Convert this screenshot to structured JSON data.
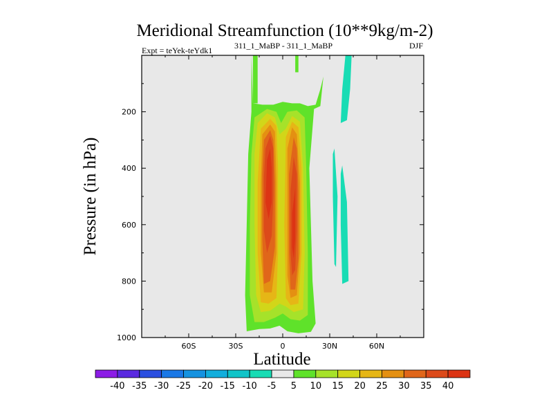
{
  "chart_data": {
    "type": "contour",
    "title": "Meridional Streamfunction (10**9kg/m-2)",
    "left_label": "Expt = teYek-teYdk1",
    "center_label": "311_1_MaBP - 311_1_MaBP",
    "right_label": "DJF",
    "xlabel": "Latitude",
    "ylabel": "Pressure (in hPa)",
    "xlim": [
      -90,
      90
    ],
    "ylim": [
      1000,
      0
    ],
    "x_ticks": [
      {
        "value": -60,
        "label": "60S"
      },
      {
        "value": -30,
        "label": "30S"
      },
      {
        "value": 0,
        "label": "0"
      },
      {
        "value": 30,
        "label": "30N"
      },
      {
        "value": 60,
        "label": "60N"
      }
    ],
    "y_ticks": [
      {
        "value": 200,
        "label": "200"
      },
      {
        "value": 400,
        "label": "400"
      },
      {
        "value": 600,
        "label": "600"
      },
      {
        "value": 800,
        "label": "800"
      },
      {
        "value": 1000,
        "label": "1000"
      }
    ],
    "colorbar": {
      "labels": [
        "-40",
        "-35",
        "-30",
        "-25",
        "-20",
        "-15",
        "-10",
        "-5",
        "5",
        "10",
        "15",
        "20",
        "25",
        "30",
        "35",
        "40"
      ],
      "colors": [
        "#8c1ce6",
        "#5a2ae0",
        "#2b4fe0",
        "#1a78e6",
        "#1592e0",
        "#12aedc",
        "#10c4c8",
        "#18dcb4",
        "#e8e8e8",
        "#5fe22a",
        "#a6e22a",
        "#d2d619",
        "#e6b616",
        "#e49012",
        "#e0661a",
        "#dc4a1a",
        "#dc3414"
      ]
    },
    "fields": [
      {
        "name": "outer-envelope",
        "level": "5 to 10",
        "outline": [
          [
            -20,
            0
          ],
          [
            -19,
            170
          ],
          [
            -13,
            175
          ],
          [
            -6,
            175
          ],
          [
            0,
            165
          ],
          [
            6,
            170
          ],
          [
            11,
            170
          ],
          [
            16,
            180
          ],
          [
            21,
            175
          ],
          [
            24,
            120
          ],
          [
            26,
            75
          ],
          [
            24,
            180
          ],
          [
            20,
            190
          ],
          [
            17,
            400
          ],
          [
            19,
            800
          ],
          [
            21,
            950
          ],
          [
            18,
            980
          ],
          [
            10,
            985
          ],
          [
            3,
            978
          ],
          [
            -2,
            958
          ],
          [
            -8,
            968
          ],
          [
            -15,
            970
          ],
          [
            -20,
            975
          ],
          [
            -23,
            978
          ],
          [
            -24,
            850
          ],
          [
            -23,
            600
          ],
          [
            -22,
            350
          ],
          [
            -20,
            200
          ]
        ]
      },
      {
        "name": "top-left-tail",
        "level": "5 to 10",
        "outline": [
          [
            -19,
            0
          ],
          [
            -16,
            0
          ],
          [
            -16,
            170
          ],
          [
            -19,
            170
          ]
        ]
      },
      {
        "name": "top-mid-tail",
        "level": "5 to 10",
        "outline": [
          [
            8,
            0
          ],
          [
            10,
            0
          ],
          [
            10,
            60
          ],
          [
            8,
            60
          ]
        ]
      },
      {
        "name": "level-10",
        "level": "10 to 15",
        "outline": [
          [
            -18,
            220
          ],
          [
            -10,
            190
          ],
          [
            -4,
            200
          ],
          [
            -1,
            240
          ],
          [
            3,
            200
          ],
          [
            9,
            195
          ],
          [
            14,
            220
          ],
          [
            15,
            400
          ],
          [
            16,
            700
          ],
          [
            16,
            920
          ],
          [
            11,
            940
          ],
          [
            5,
            935
          ],
          [
            0,
            915
          ],
          [
            -5,
            930
          ],
          [
            -12,
            945
          ],
          [
            -18,
            945
          ],
          [
            -21,
            850
          ],
          [
            -21,
            600
          ],
          [
            -20,
            350
          ]
        ]
      },
      {
        "name": "level-15",
        "level": "15 to 20",
        "outline": [
          [
            -16,
            240
          ],
          [
            -10,
            205
          ],
          [
            -5,
            220
          ],
          [
            -2,
            280
          ],
          [
            2,
            260
          ],
          [
            6,
            215
          ],
          [
            11,
            235
          ],
          [
            13,
            400
          ],
          [
            14,
            700
          ],
          [
            13,
            900
          ],
          [
            7,
            910
          ],
          [
            2,
            890
          ],
          [
            -2,
            880
          ],
          [
            -8,
            905
          ],
          [
            -14,
            910
          ],
          [
            -17,
            850
          ],
          [
            -18,
            600
          ],
          [
            -18,
            350
          ]
        ]
      },
      {
        "name": "level-20-left",
        "level": "20 to 25",
        "outline": [
          [
            -14,
            260
          ],
          [
            -8,
            225
          ],
          [
            -4,
            250
          ],
          [
            -3,
            400
          ],
          [
            -3,
            700
          ],
          [
            -4,
            860
          ],
          [
            -9,
            880
          ],
          [
            -14,
            875
          ],
          [
            -16,
            700
          ],
          [
            -16,
            450
          ]
        ]
      },
      {
        "name": "level-20-right",
        "level": "20 to 25",
        "outline": [
          [
            2,
            290
          ],
          [
            6,
            235
          ],
          [
            10,
            255
          ],
          [
            12,
            400
          ],
          [
            12,
            700
          ],
          [
            10,
            880
          ],
          [
            5,
            885
          ],
          [
            2,
            860
          ],
          [
            1,
            600
          ]
        ]
      },
      {
        "name": "level-25-left",
        "level": "25 to 30",
        "outline": [
          [
            -13,
            280
          ],
          [
            -8,
            245
          ],
          [
            -5,
            270
          ],
          [
            -4,
            450
          ],
          [
            -4,
            700
          ],
          [
            -7,
            840
          ],
          [
            -12,
            840
          ],
          [
            -14,
            700
          ],
          [
            -14,
            450
          ]
        ]
      },
      {
        "name": "level-25-right",
        "level": "25 to 30",
        "outline": [
          [
            3,
            330
          ],
          [
            6,
            255
          ],
          [
            9,
            280
          ],
          [
            11,
            450
          ],
          [
            11,
            700
          ],
          [
            9,
            850
          ],
          [
            5,
            860
          ],
          [
            3,
            780
          ]
        ]
      },
      {
        "name": "level-30-left",
        "level": "30 to 35",
        "outline": [
          [
            -12,
            300
          ],
          [
            -8,
            265
          ],
          [
            -6,
            300
          ],
          [
            -5,
            450
          ],
          [
            -5,
            680
          ],
          [
            -8,
            800
          ],
          [
            -12,
            810
          ],
          [
            -13,
            650
          ],
          [
            -13,
            420
          ]
        ]
      },
      {
        "name": "level-30-right",
        "level": "30 to 35",
        "outline": [
          [
            4,
            420
          ],
          [
            7,
            290
          ],
          [
            9,
            330
          ],
          [
            10,
            480
          ],
          [
            10,
            720
          ],
          [
            8,
            830
          ],
          [
            5,
            830
          ],
          [
            4,
            700
          ]
        ]
      },
      {
        "name": "level-35-left",
        "level": "35 to 40",
        "outline": [
          [
            -11,
            330
          ],
          [
            -8,
            285
          ],
          [
            -6,
            330
          ],
          [
            -6,
            500
          ],
          [
            -7,
            640
          ],
          [
            -10,
            700
          ],
          [
            -12,
            620
          ],
          [
            -12,
            430
          ]
        ]
      },
      {
        "name": "level-35-right",
        "level": "35 to 40",
        "outline": [
          [
            5,
            480
          ],
          [
            7,
            360
          ],
          [
            9,
            420
          ],
          [
            9,
            620
          ],
          [
            8,
            760
          ],
          [
            6,
            780
          ],
          [
            5,
            700
          ]
        ]
      },
      {
        "name": "level-40-left",
        "level": "above 40",
        "outline": [
          [
            -10,
            370
          ],
          [
            -8,
            330
          ],
          [
            -7,
            400
          ],
          [
            -7,
            520
          ],
          [
            -9,
            580
          ],
          [
            -11,
            520
          ]
        ]
      },
      {
        "name": "level-40-right",
        "level": "above 40",
        "outline": [
          [
            6,
            560
          ],
          [
            8,
            470
          ],
          [
            8,
            650
          ],
          [
            7,
            720
          ],
          [
            6,
            680
          ]
        ]
      },
      {
        "name": "negative-upper-right",
        "level": "-10 to -5",
        "outline": [
          [
            40,
            0
          ],
          [
            44,
            0
          ],
          [
            43,
            120
          ],
          [
            41,
            230
          ],
          [
            37,
            240
          ],
          [
            38,
            120
          ]
        ]
      },
      {
        "name": "negative-mid-right",
        "level": "-10 to -5",
        "outline": [
          [
            32,
            350
          ],
          [
            33,
            330
          ],
          [
            35,
            500
          ],
          [
            34,
            750
          ],
          [
            33,
            740
          ],
          [
            32,
            500
          ]
        ]
      },
      {
        "name": "negative-lower-right",
        "level": "-10 to -5",
        "outline": [
          [
            37,
            420
          ],
          [
            38,
            390
          ],
          [
            41,
            520
          ],
          [
            42,
            800
          ],
          [
            38,
            810
          ],
          [
            37,
            600
          ]
        ]
      }
    ]
  }
}
